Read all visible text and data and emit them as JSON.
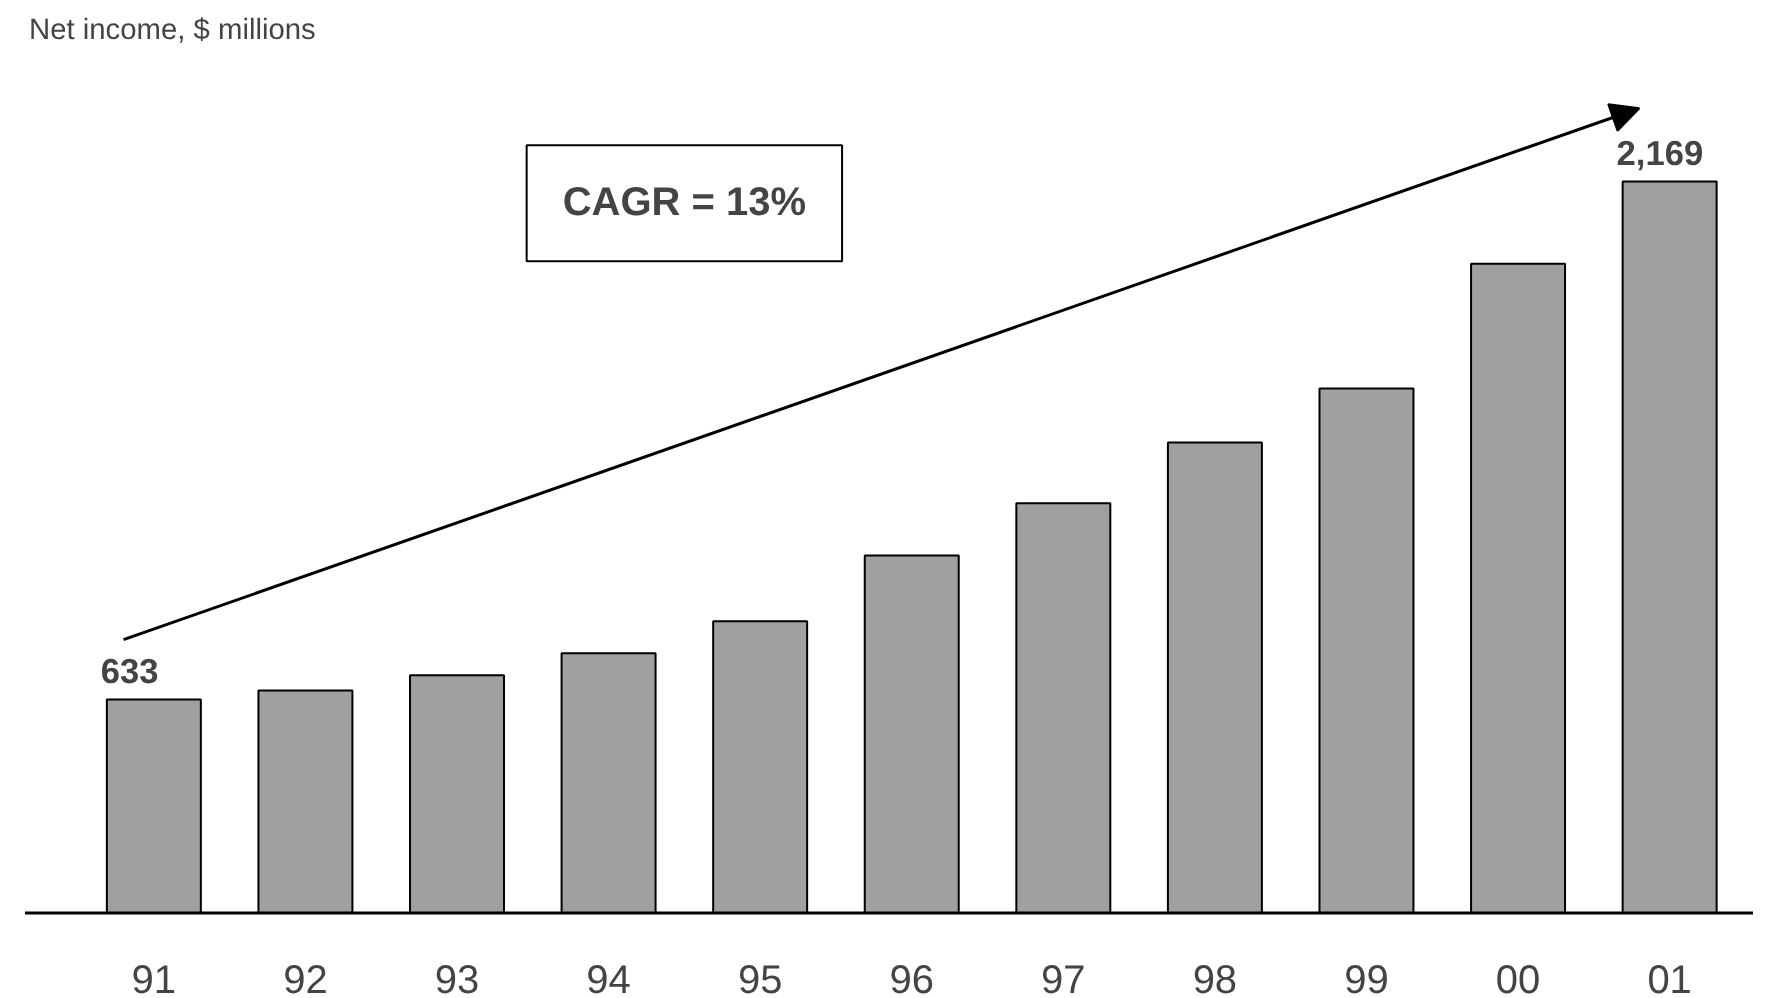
{
  "chart_data": {
    "type": "bar",
    "title": "Net income, $ millions",
    "categories": [
      "91",
      "92",
      "93",
      "94",
      "95",
      "96",
      "97",
      "98",
      "99",
      "00",
      "01"
    ],
    "values": [
      633,
      660,
      705,
      770,
      865,
      1060,
      1215,
      1395,
      1555,
      1925,
      2169
    ],
    "value_labels": [
      "633",
      null,
      null,
      null,
      null,
      null,
      null,
      null,
      null,
      null,
      "2,169"
    ],
    "color": "#a0a0a0",
    "annotations": [
      "CAGR = 13%"
    ],
    "grid": false
  }
}
